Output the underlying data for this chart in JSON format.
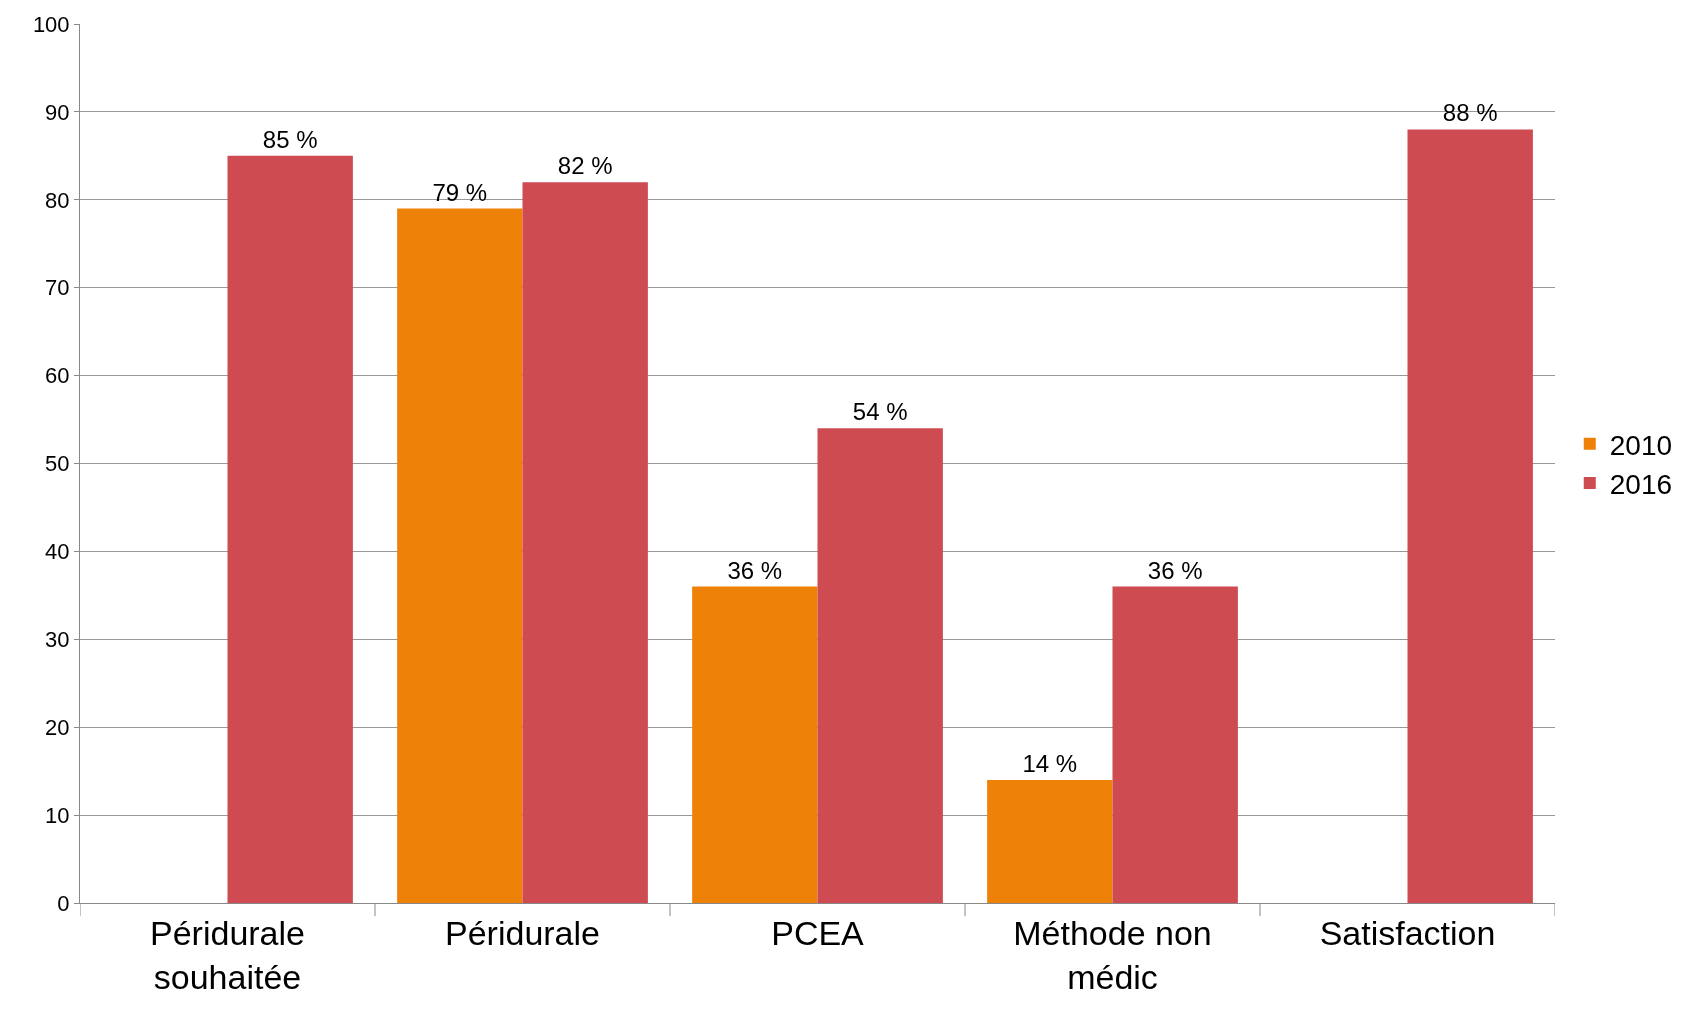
{
  "chart_data": {
    "type": "bar",
    "categories": [
      "Péridurale souhaitée",
      "Péridurale",
      "PCEA",
      "Méthode non médic",
      "Satisfaction"
    ],
    "series": [
      {
        "name": "2010",
        "color": "#ee8208",
        "values": [
          null,
          79,
          36,
          14,
          null
        ],
        "value_labels": [
          null,
          "79 %",
          "36 %",
          "14 %",
          null
        ]
      },
      {
        "name": "2016",
        "color": "#cd4b51",
        "values": [
          85,
          82,
          54,
          36,
          88
        ],
        "value_labels": [
          "85 %",
          "82 %",
          "54 %",
          "36 %",
          "88 %"
        ]
      }
    ],
    "ylim": [
      0,
      100
    ],
    "yticks": [
      0,
      10,
      20,
      30,
      40,
      50,
      60,
      70,
      80,
      90,
      100
    ],
    "grid": "y",
    "legend": "right"
  }
}
